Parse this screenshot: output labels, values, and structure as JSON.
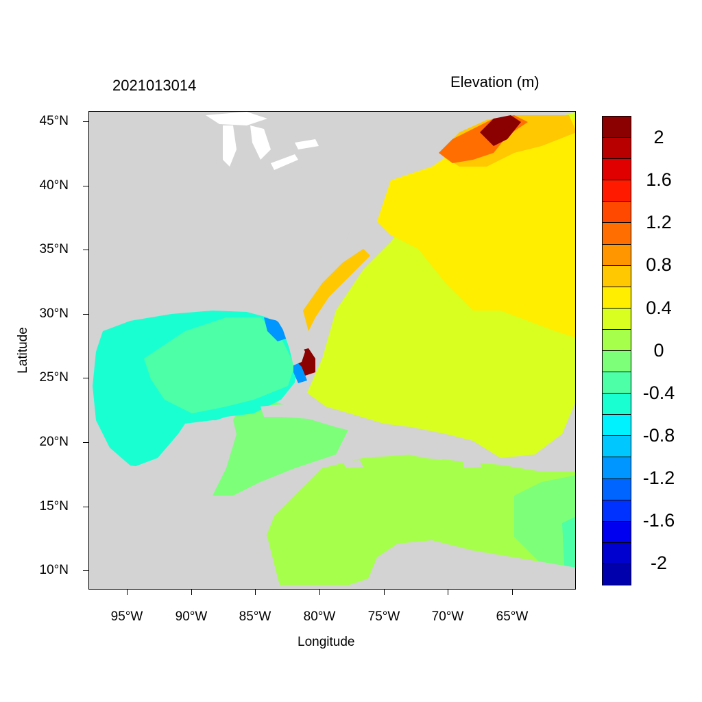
{
  "header": {
    "timestamp": "2021013014",
    "variable": "Elevation (m)"
  },
  "axes": {
    "xlabel": "Longitude",
    "ylabel": "Latitude",
    "y_ticks": [
      "45°N",
      "40°N",
      "35°N",
      "30°N",
      "25°N",
      "20°N",
      "15°N",
      "10°N"
    ],
    "x_ticks": [
      "95°W",
      "90°W",
      "85°W",
      "80°W",
      "75°W",
      "70°W",
      "65°W"
    ],
    "lon_range": [
      -98,
      -61
    ],
    "lat_range": [
      8.5,
      46
    ]
  },
  "colorbar": {
    "labels": [
      "2",
      "1.6",
      "1.2",
      "0.8",
      "0.4",
      "0",
      "-0.4",
      "-0.8",
      "-1.2",
      "-1.6",
      "-2"
    ],
    "colors": [
      "#8b0000",
      "#b80000",
      "#e10000",
      "#ff1a00",
      "#ff4800",
      "#ff6e00",
      "#ff9600",
      "#ffc800",
      "#ffee00",
      "#d8ff1f",
      "#a6ff4a",
      "#7dff7a",
      "#4dffa6",
      "#1affd2",
      "#00f2ff",
      "#00c8ff",
      "#0096ff",
      "#0064ff",
      "#0032ff",
      "#0000f0",
      "#0000cf",
      "#0000ad"
    ],
    "land_color": "#d3d3d3"
  }
}
